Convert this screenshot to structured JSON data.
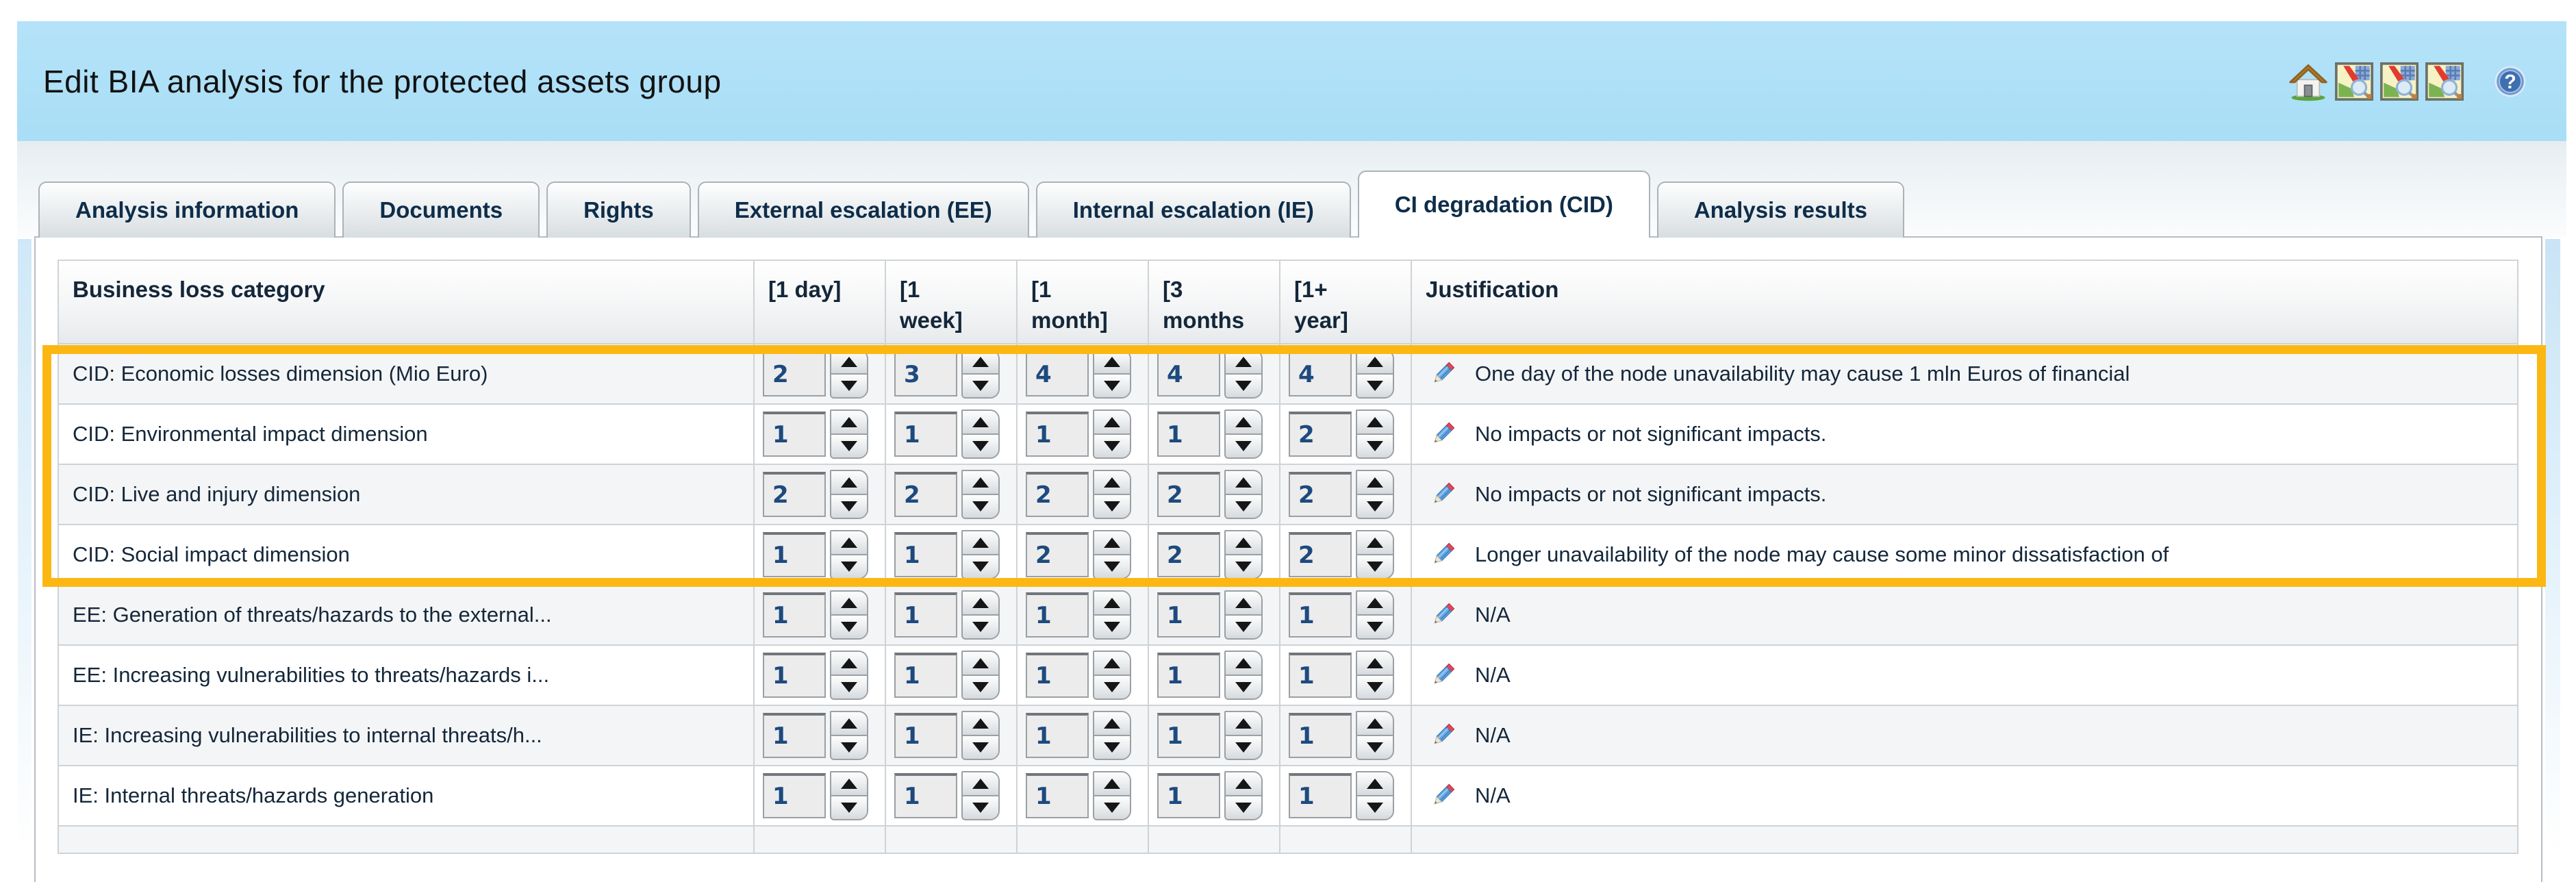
{
  "page": {
    "title": "Edit BIA analysis for the protected assets group"
  },
  "header_icons": [
    {
      "name": "home-icon"
    },
    {
      "name": "map-report-icon"
    },
    {
      "name": "map-report-icon"
    },
    {
      "name": "map-report-icon"
    },
    {
      "name": "help-icon"
    }
  ],
  "tabs": [
    {
      "label": "Analysis information",
      "active": false
    },
    {
      "label": "Documents",
      "active": false
    },
    {
      "label": "Rights",
      "active": false
    },
    {
      "label": "External escalation (EE)",
      "active": false
    },
    {
      "label": "Internal escalation (IE)",
      "active": false
    },
    {
      "label": "CI degradation (CID)",
      "active": true
    },
    {
      "label": "Analysis results",
      "active": false
    }
  ],
  "table": {
    "columns": [
      "Business loss category",
      "[1 day]",
      "[1\nweek]",
      "[1\nmonth]",
      "[3\nmonths",
      "[1+\nyear]",
      "Justification"
    ],
    "rows": [
      {
        "category": "CID: Economic losses dimension (Mio Euro)",
        "values": [
          "2",
          "3",
          "4",
          "4",
          "4"
        ],
        "justification": "One day of the node unavailability may cause 1 mln Euros of financial",
        "highlighted": true
      },
      {
        "category": "CID: Environmental impact dimension",
        "values": [
          "1",
          "1",
          "1",
          "1",
          "2"
        ],
        "justification": "No impacts or not significant impacts.",
        "highlighted": true
      },
      {
        "category": "CID: Live and injury dimension",
        "values": [
          "2",
          "2",
          "2",
          "2",
          "2"
        ],
        "justification": "No impacts or not significant impacts.",
        "highlighted": true
      },
      {
        "category": "CID: Social impact dimension",
        "values": [
          "1",
          "1",
          "2",
          "2",
          "2"
        ],
        "justification": "Longer unavailability of the node may cause some minor dissatisfaction of",
        "highlighted": true
      },
      {
        "category": "EE: Generation of threats/hazards to the external...",
        "values": [
          "1",
          "1",
          "1",
          "1",
          "1"
        ],
        "justification": "N/A",
        "highlighted": false
      },
      {
        "category": "EE: Increasing vulnerabilities to threats/hazards i...",
        "values": [
          "1",
          "1",
          "1",
          "1",
          "1"
        ],
        "justification": "N/A",
        "highlighted": false
      },
      {
        "category": "IE: Increasing vulnerabilities to internal threats/h...",
        "values": [
          "1",
          "1",
          "1",
          "1",
          "1"
        ],
        "justification": "N/A",
        "highlighted": false
      },
      {
        "category": "IE: Internal threats/hazards generation",
        "values": [
          "1",
          "1",
          "1",
          "1",
          "1"
        ],
        "justification": "N/A",
        "highlighted": false
      }
    ]
  },
  "colors": {
    "title_band": "#addff7",
    "highlight": "#fcb713",
    "spinner_value_text": "#1d4a7e",
    "tab_text": "#0e2d49",
    "table_text": "#14273a"
  }
}
